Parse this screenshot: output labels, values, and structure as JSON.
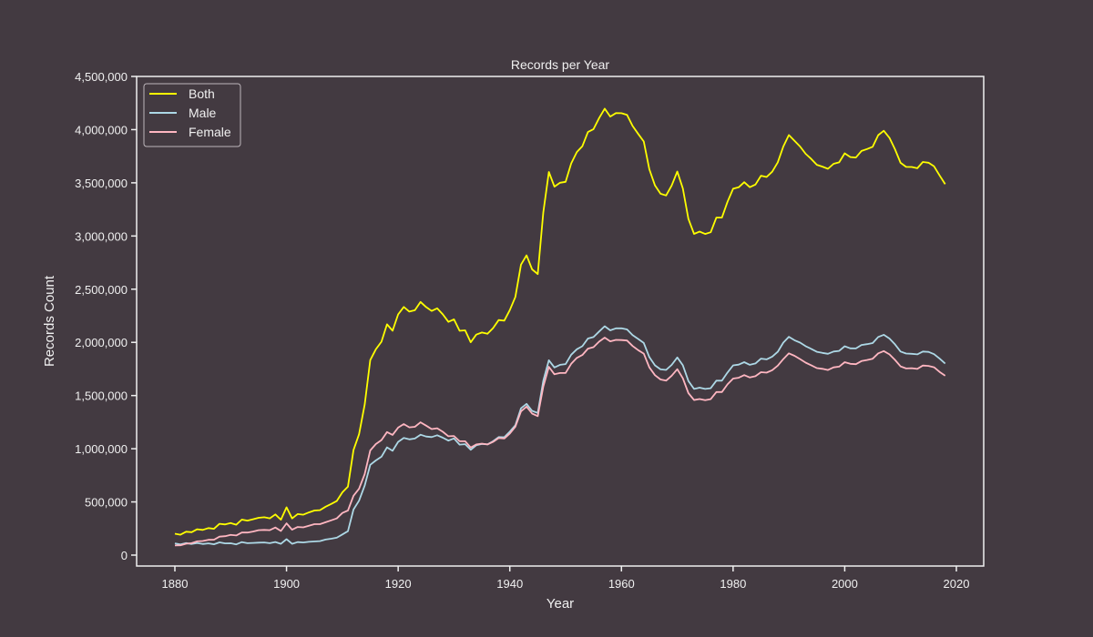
{
  "chart_data": {
    "type": "line",
    "title": "Records per Year",
    "xlabel": "Year",
    "ylabel": "Records Count",
    "xlim": [
      1873,
      2025
    ],
    "ylim": [
      -100000,
      4600000
    ],
    "x_ticks": [
      1880,
      1900,
      1920,
      1940,
      1960,
      1980,
      2000,
      2020
    ],
    "y_ticks": [
      0,
      500000,
      1000000,
      1500000,
      2000000,
      2500000,
      3000000,
      3500000,
      4000000,
      4500000
    ],
    "y_tick_labels": [
      "0",
      "500,000",
      "1,000,000",
      "1,500,000",
      "2,000,000",
      "2,500,000",
      "3,000,000",
      "3,500,000",
      "4,000,000",
      "4,500,000"
    ],
    "grid": false,
    "legend_position": "top-left",
    "background": "#433a41",
    "x_start": 1880,
    "x_end": 2018,
    "series": [
      {
        "name": "Both",
        "color": "#ffff00",
        "values": [
          201000,
          192000,
          220000,
          216000,
          243000,
          237000,
          254000,
          247000,
          294000,
          288000,
          301000,
          286000,
          334000,
          324000,
          337000,
          351000,
          356000,
          346000,
          382000,
          333000,
          449000,
          345000,
          386000,
          380000,
          401000,
          419000,
          423000,
          455000,
          481000,
          508000,
          590000,
          644000,
          987000,
          1136000,
          1415000,
          1833000,
          1934000,
          2006000,
          2170000,
          2110000,
          2263000,
          2333000,
          2289000,
          2302000,
          2380000,
          2332000,
          2295000,
          2320000,
          2263000,
          2193000,
          2217000,
          2109000,
          2113000,
          2001000,
          2073000,
          2093000,
          2081000,
          2134000,
          2210000,
          2204000,
          2303000,
          2427000,
          2731000,
          2818000,
          2686000,
          2642000,
          3224000,
          3602000,
          3464000,
          3501000,
          3509000,
          3682000,
          3789000,
          3845000,
          3977000,
          4005000,
          4109000,
          4197000,
          4123000,
          4155000,
          4154000,
          4139000,
          4035000,
          3959000,
          3888000,
          3627000,
          3475000,
          3397000,
          3381000,
          3474000,
          3606000,
          3447000,
          3160000,
          3020000,
          3041000,
          3019000,
          3035000,
          3173000,
          3173000,
          3321000,
          3444000,
          3458000,
          3506000,
          3459000,
          3484000,
          3567000,
          3555000,
          3604000,
          3692000,
          3841000,
          3949000,
          3894000,
          3841000,
          3773000,
          3724000,
          3669000,
          3652000,
          3632000,
          3679000,
          3692000,
          3777000,
          3742000,
          3738000,
          3799000,
          3817000,
          3839000,
          3948000,
          3989000,
          3923000,
          3816000,
          3688000,
          3650000,
          3649000,
          3637000,
          3696000,
          3689000,
          3655000,
          3569000,
          3487000
        ]
      },
      {
        "name": "Male",
        "color": "#add8e6",
        "values": [
          110000,
          100000,
          113000,
          104000,
          114000,
          104000,
          110000,
          102000,
          120000,
          110000,
          111000,
          101000,
          122000,
          112000,
          115000,
          117000,
          119000,
          112000,
          123000,
          106000,
          150000,
          106000,
          122000,
          119000,
          125000,
          128000,
          132000,
          146000,
          154000,
          163000,
          194000,
          225000,
          429000,
          512000,
          654000,
          849000,
          890000,
          925000,
          1013000,
          980000,
          1064000,
          1101000,
          1088000,
          1096000,
          1132000,
          1115000,
          1110000,
          1127000,
          1104000,
          1076000,
          1097000,
          1039000,
          1043000,
          990000,
          1033000,
          1045000,
          1041000,
          1070000,
          1110000,
          1108000,
          1160000,
          1220000,
          1380000,
          1422000,
          1356000,
          1336000,
          1639000,
          1832000,
          1764000,
          1789000,
          1796000,
          1884000,
          1935000,
          1964000,
          2036000,
          2050000,
          2102000,
          2152000,
          2113000,
          2132000,
          2132000,
          2122000,
          2069000,
          2032000,
          1994000,
          1862000,
          1784000,
          1746000,
          1741000,
          1788000,
          1858000,
          1785000,
          1637000,
          1562000,
          1574000,
          1562000,
          1569000,
          1640000,
          1640000,
          1716000,
          1784000,
          1791000,
          1814000,
          1789000,
          1802000,
          1847000,
          1840000,
          1866000,
          1911000,
          1998000,
          2052000,
          2020000,
          1998000,
          1964000,
          1939000,
          1911000,
          1901000,
          1892000,
          1914000,
          1920000,
          1963000,
          1944000,
          1943000,
          1975000,
          1983000,
          1993000,
          2051000,
          2071000,
          2036000,
          1981000,
          1914000,
          1895000,
          1892000,
          1887000,
          1914000,
          1910000,
          1889000,
          1847000,
          1801000
        ]
      },
      {
        "name": "Female",
        "color": "#ffb6c1",
        "values": [
          91000,
          92000,
          107000,
          112000,
          129000,
          133000,
          144000,
          145000,
          174000,
          178000,
          190000,
          185000,
          212000,
          212000,
          222000,
          234000,
          237000,
          234000,
          259000,
          227000,
          299000,
          239000,
          264000,
          261000,
          276000,
          291000,
          291000,
          309000,
          327000,
          345000,
          396000,
          419000,
          558000,
          624000,
          761000,
          984000,
          1044000,
          1081000,
          1157000,
          1130000,
          1199000,
          1232000,
          1201000,
          1206000,
          1248000,
          1217000,
          1185000,
          1193000,
          1159000,
          1117000,
          1120000,
          1070000,
          1070000,
          1011000,
          1040000,
          1048000,
          1040000,
          1064000,
          1100000,
          1096000,
          1143000,
          1207000,
          1351000,
          1396000,
          1330000,
          1306000,
          1585000,
          1770000,
          1700000,
          1712000,
          1713000,
          1798000,
          1854000,
          1881000,
          1941000,
          1955000,
          2007000,
          2045000,
          2010000,
          2023000,
          2022000,
          2017000,
          1966000,
          1927000,
          1894000,
          1765000,
          1691000,
          1651000,
          1640000,
          1686000,
          1748000,
          1662000,
          1523000,
          1458000,
          1467000,
          1457000,
          1466000,
          1533000,
          1533000,
          1605000,
          1660000,
          1667000,
          1692000,
          1670000,
          1682000,
          1720000,
          1715000,
          1738000,
          1781000,
          1843000,
          1897000,
          1874000,
          1843000,
          1809000,
          1785000,
          1758000,
          1751000,
          1740000,
          1765000,
          1772000,
          1814000,
          1798000,
          1795000,
          1824000,
          1834000,
          1846000,
          1897000,
          1918000,
          1887000,
          1835000,
          1774000,
          1755000,
          1757000,
          1750000,
          1782000,
          1779000,
          1766000,
          1722000,
          1686000
        ]
      }
    ]
  }
}
